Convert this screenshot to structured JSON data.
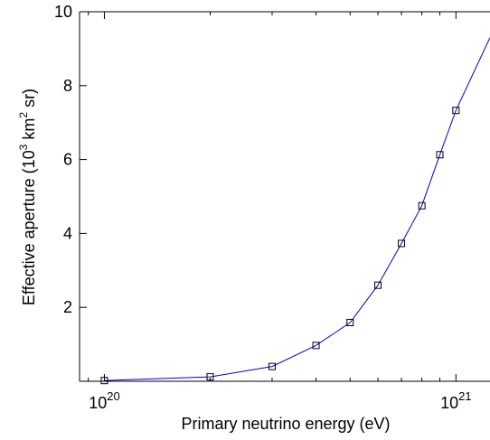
{
  "chart_data": {
    "type": "line",
    "title": "",
    "xlabel": "Primary neutrino energy (eV)",
    "ylabel": {
      "main": "Effective aperture (10",
      "exp1": "3",
      "mid": " km",
      "exp2": "2",
      "end": " sr)"
    },
    "x_scale": "log",
    "xlim": [
      8.5e+19,
      1.25e+21
    ],
    "ylim": [
      0,
      10
    ],
    "x_ticks": [
      {
        "value": 1e+20,
        "base": "10",
        "exp": "20"
      },
      {
        "value": 1e+21,
        "base": "10",
        "exp": "21"
      }
    ],
    "y_ticks": [
      {
        "value": 2,
        "label": "2"
      },
      {
        "value": 4,
        "label": "4"
      },
      {
        "value": 6,
        "label": "6"
      },
      {
        "value": 8,
        "label": "8"
      },
      {
        "value": 10,
        "label": "10"
      }
    ],
    "grid": false,
    "series": [
      {
        "color": "#0000cc",
        "marker": "square",
        "marker_color": "#000000",
        "points": [
          {
            "x": 1e+20,
            "y": 0.02
          },
          {
            "x": 2e+20,
            "y": 0.12
          },
          {
            "x": 3e+20,
            "y": 0.4
          },
          {
            "x": 4e+20,
            "y": 0.97
          },
          {
            "x": 5e+20,
            "y": 1.59
          },
          {
            "x": 6e+20,
            "y": 2.6
          },
          {
            "x": 7e+20,
            "y": 3.73
          },
          {
            "x": 8e+20,
            "y": 4.75
          },
          {
            "x": 9e+20,
            "y": 6.13
          },
          {
            "x": 1e+21,
            "y": 7.33
          }
        ],
        "line_extension": {
          "x": 1.25e+21,
          "y": 9.3
        }
      }
    ]
  }
}
